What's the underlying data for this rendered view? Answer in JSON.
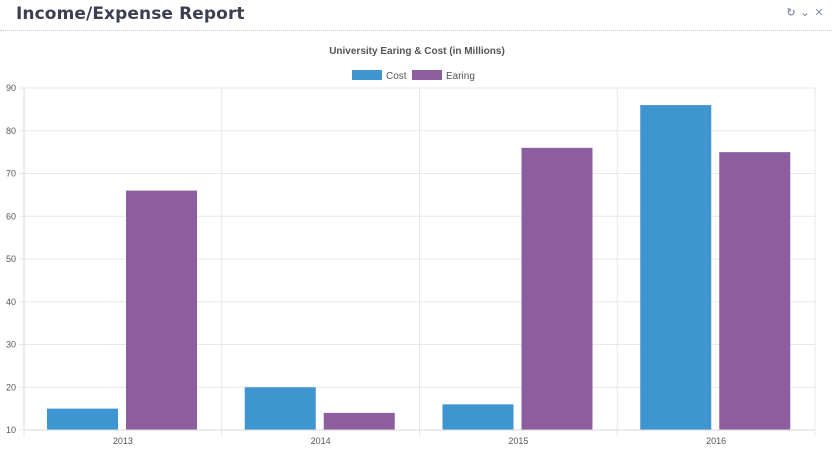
{
  "header": {
    "title": "Income/Expense Report",
    "tools": [
      {
        "icon": "refresh-icon",
        "glyph": "↻"
      },
      {
        "icon": "chevron-down-icon",
        "glyph": "⌄"
      },
      {
        "icon": "close-icon",
        "glyph": "✕"
      }
    ]
  },
  "chart_data": {
    "type": "bar",
    "title": "University Earing & Cost (in Millions)",
    "categories": [
      "2013",
      "2014",
      "2015",
      "2016"
    ],
    "series": [
      {
        "name": "Cost",
        "color": "#3f95cf",
        "values": [
          15,
          20,
          16,
          86
        ]
      },
      {
        "name": "Earing",
        "color": "#8c5ea0",
        "values": [
          66,
          14,
          76,
          75
        ]
      }
    ],
    "ylim": [
      10,
      90
    ],
    "yticks": [
      10,
      20,
      30,
      40,
      50,
      60,
      70,
      80,
      90
    ],
    "grid": true,
    "legend_position": "top-center"
  }
}
